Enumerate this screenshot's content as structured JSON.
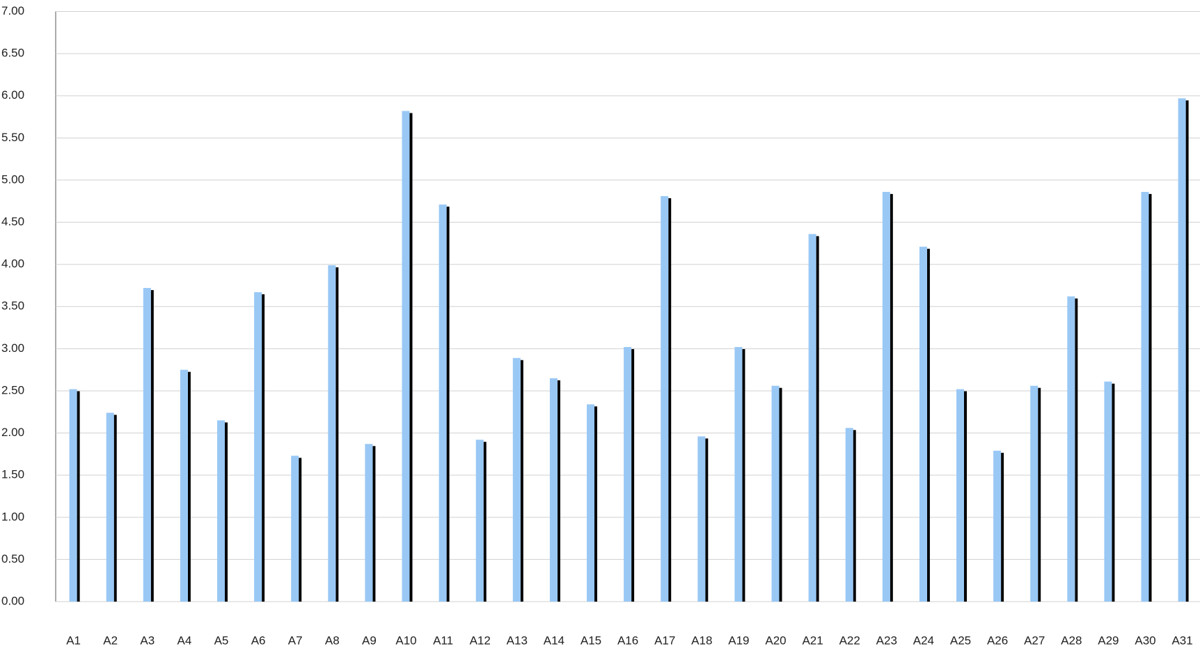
{
  "chart_data": {
    "type": "bar",
    "categories": [
      "A1",
      "A2",
      "A3",
      "A4",
      "A5",
      "A6",
      "A7",
      "A8",
      "A9",
      "A10",
      "A11",
      "A12",
      "A13",
      "A14",
      "A15",
      "A16",
      "A17",
      "A18",
      "A19",
      "A20",
      "A21",
      "A22",
      "A23",
      "A24",
      "A25",
      "A26",
      "A27",
      "A28",
      "A29",
      "A30",
      "A31"
    ],
    "values": [
      2.52,
      2.24,
      3.72,
      2.75,
      2.15,
      3.67,
      1.73,
      3.99,
      1.87,
      5.82,
      4.71,
      1.92,
      2.89,
      2.65,
      2.34,
      3.02,
      4.81,
      1.96,
      3.02,
      2.56,
      4.36,
      2.06,
      4.86,
      4.21,
      2.52,
      1.79,
      2.56,
      3.62,
      2.61,
      4.86,
      5.97
    ],
    "color": "#99c8f5",
    "ylim": [
      0,
      7
    ],
    "yticks": [
      {
        "value": 0,
        "label": "0.00"
      },
      {
        "value": 0.5,
        "label": "0.50"
      },
      {
        "value": 1,
        "label": "1.00"
      },
      {
        "value": 1.5,
        "label": "1.50"
      },
      {
        "value": 2,
        "label": "2.00"
      },
      {
        "value": 2.5,
        "label": "2.50"
      },
      {
        "value": 3,
        "label": "3.00"
      },
      {
        "value": 3.5,
        "label": "3.50"
      },
      {
        "value": 4,
        "label": "4.00"
      },
      {
        "value": 4.5,
        "label": "4.50"
      },
      {
        "value": 5,
        "label": "5.00"
      },
      {
        "value": 5.5,
        "label": "5.50"
      },
      {
        "value": 6,
        "label": "6.00"
      },
      {
        "value": 6.5,
        "label": "6.50"
      },
      {
        "value": 7,
        "label": "7.00"
      }
    ],
    "grid": true
  }
}
